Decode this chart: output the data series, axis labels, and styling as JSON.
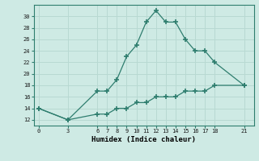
{
  "x_upper": [
    0,
    3,
    6,
    7,
    8,
    9,
    10,
    11,
    12,
    13,
    14,
    15,
    16,
    17,
    18,
    21
  ],
  "y_upper": [
    14,
    12,
    17,
    17,
    19,
    23,
    25,
    29,
    31,
    29,
    29,
    26,
    24,
    24,
    22,
    18
  ],
  "x_lower": [
    0,
    3,
    6,
    7,
    8,
    9,
    10,
    11,
    12,
    13,
    14,
    15,
    16,
    17,
    18,
    21
  ],
  "y_lower": [
    14,
    12,
    13,
    13,
    14,
    14,
    15,
    15,
    16,
    16,
    16,
    17,
    17,
    17,
    18,
    18
  ],
  "line_color": "#2e7d6e",
  "bg_color": "#ceeae4",
  "grid_color": "#b8d9d2",
  "xlabel": "Humidex (Indice chaleur)",
  "xticks": [
    0,
    3,
    6,
    7,
    8,
    9,
    10,
    11,
    12,
    13,
    14,
    15,
    16,
    17,
    18,
    21
  ],
  "yticks": [
    12,
    14,
    16,
    18,
    20,
    22,
    24,
    26,
    28,
    30
  ],
  "ylim": [
    11,
    32
  ],
  "xlim": [
    -0.5,
    22
  ]
}
